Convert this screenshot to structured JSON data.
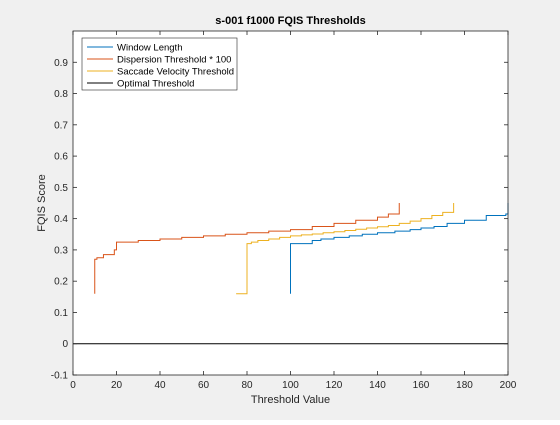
{
  "chart_data": {
    "type": "line",
    "title": "s-001 f1000 FQIS Thresholds",
    "xlabel": "Threshold Value",
    "ylabel": "FQIS Score",
    "xlim": [
      0,
      200
    ],
    "ylim": [
      -0.1,
      1.0
    ],
    "xticks": [
      0,
      20,
      40,
      60,
      80,
      100,
      120,
      140,
      160,
      180,
      200
    ],
    "yticks": [
      -0.1,
      0,
      0.1,
      0.2,
      0.3,
      0.4,
      0.5,
      0.6,
      0.7,
      0.8,
      0.9
    ],
    "xtick_labels": [
      "0",
      "20",
      "40",
      "60",
      "80",
      "100",
      "120",
      "140",
      "160",
      "180",
      "200"
    ],
    "ytick_labels": [
      "-0.1",
      "0",
      "0.1",
      "0.2",
      "0.3",
      "0.4",
      "0.5",
      "0.6",
      "0.7",
      "0.8",
      "0.9"
    ],
    "grid": false,
    "legend_position": "top-left",
    "series": [
      {
        "name": "Window Length",
        "color": "#0072bd",
        "step": true,
        "x": [
          100,
          100,
          102,
          110,
          114,
          120,
          127,
          133,
          140,
          148,
          155,
          160,
          166,
          172,
          180,
          190,
          199,
          200
        ],
        "y": [
          0.16,
          0.32,
          0.32,
          0.33,
          0.335,
          0.34,
          0.345,
          0.35,
          0.355,
          0.36,
          0.365,
          0.37,
          0.375,
          0.385,
          0.395,
          0.41,
          0.415,
          0.45
        ]
      },
      {
        "name": "Dispersion Threshold * 100",
        "color": "#d95319",
        "step": true,
        "x": [
          10,
          10,
          11,
          14,
          19,
          20,
          30,
          40,
          50,
          60,
          70,
          80,
          90,
          100,
          110,
          120,
          130,
          140,
          145,
          150
        ],
        "y": [
          0.16,
          0.27,
          0.275,
          0.285,
          0.3,
          0.325,
          0.33,
          0.335,
          0.34,
          0.345,
          0.35,
          0.355,
          0.36,
          0.365,
          0.375,
          0.385,
          0.395,
          0.405,
          0.415,
          0.45
        ]
      },
      {
        "name": "Saccade Velocity Threshold",
        "color": "#edb120",
        "step": true,
        "x": [
          75,
          79,
          80,
          82,
          85,
          90,
          95,
          100,
          105,
          110,
          115,
          120,
          125,
          130,
          135,
          140,
          145,
          150,
          155,
          160,
          165,
          170,
          175
        ],
        "y": [
          0.16,
          0.16,
          0.32,
          0.325,
          0.33,
          0.335,
          0.34,
          0.345,
          0.348,
          0.351,
          0.355,
          0.358,
          0.362,
          0.366,
          0.37,
          0.374,
          0.378,
          0.385,
          0.392,
          0.4,
          0.41,
          0.42,
          0.45
        ]
      },
      {
        "name": "Optimal Threshold",
        "color": "#000000",
        "step": false,
        "x": [
          0,
          200
        ],
        "y": [
          0,
          0
        ]
      }
    ]
  }
}
